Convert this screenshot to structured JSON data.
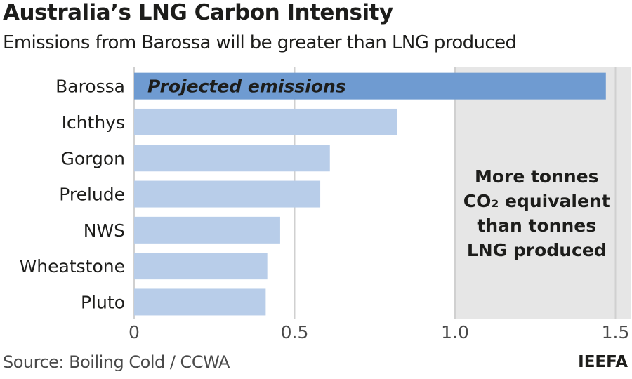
{
  "header": {
    "title": "Australia’s LNG Carbon Intensity",
    "subtitle": "Emissions from Barossa will be greater than LNG produced"
  },
  "footer": {
    "source": "Source: Boiling Cold / CCWA",
    "brand": "IEEFA"
  },
  "colors": {
    "highlight_bar": "#6f9bd1",
    "bar": "#b8cde9",
    "shade": "#e6e6e6",
    "grid": "#d0d0d0"
  },
  "chart_data": {
    "type": "bar",
    "orientation": "horizontal",
    "title": "Australia’s LNG Carbon Intensity",
    "subtitle": "Emissions from Barossa will be greater than LNG produced",
    "categories": [
      "Barossa",
      "Ichthys",
      "Gorgon",
      "Prelude",
      "NWS",
      "Wheatstone",
      "Pluto"
    ],
    "values": [
      1.47,
      0.82,
      0.61,
      0.58,
      0.455,
      0.415,
      0.41
    ],
    "highlight": "Barossa",
    "bar_annotation": "Projected emissions",
    "xlim": [
      0,
      1.55
    ],
    "xticks": [
      0,
      0.5,
      1.0,
      1.5
    ],
    "xtick_labels": [
      "0",
      "0.5",
      "1.0",
      "1.5"
    ],
    "grid": true,
    "shaded_region": {
      "from": 1.0,
      "to": 1.55
    },
    "region_note": [
      "More tonnes",
      "CO₂ equivalent",
      "than tonnes",
      "LNG produced"
    ],
    "xlabel": "",
    "ylabel": ""
  }
}
